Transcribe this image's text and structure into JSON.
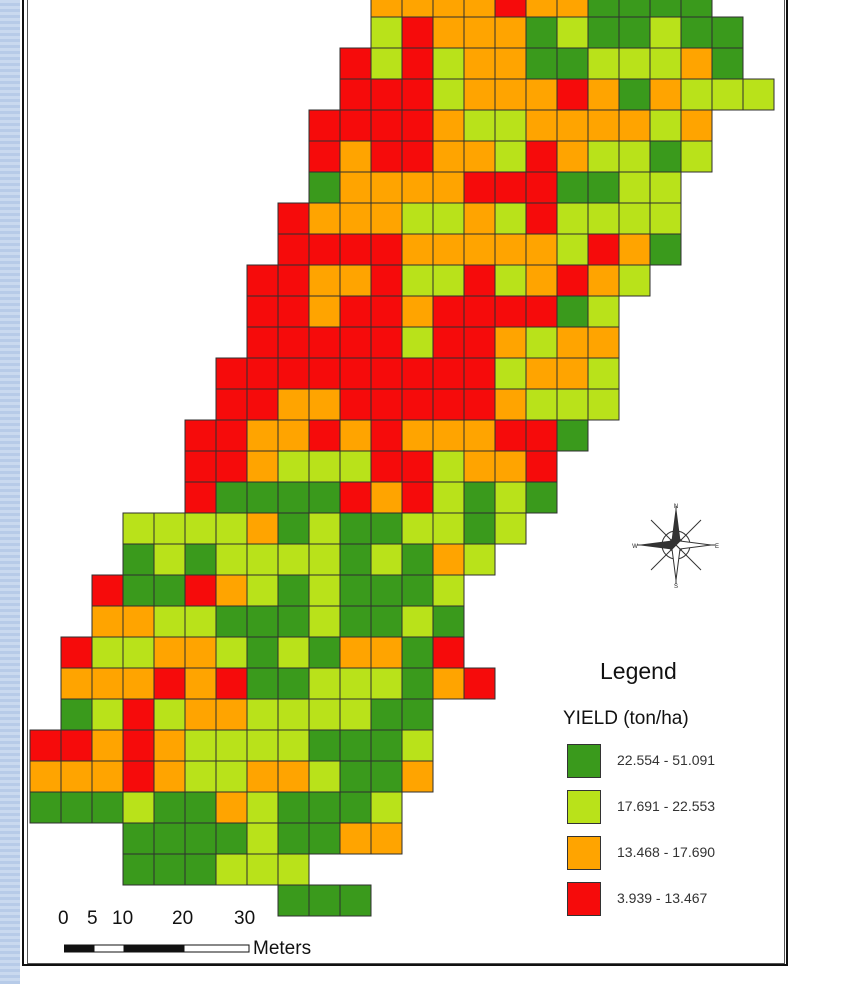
{
  "legend": {
    "title": "Legend",
    "field": "YIELD (ton/ha)",
    "classes": [
      {
        "label": "22.554 - 51.091",
        "color": "#3a9a1c",
        "code": "G"
      },
      {
        "label": "17.691 - 22.553",
        "color": "#b9e21a",
        "code": "L"
      },
      {
        "label": "13.468 - 17.690",
        "color": "#ffa400",
        "code": "O"
      },
      {
        "label": "3.939 - 13.467",
        "color": "#f60b0b",
        "code": "R"
      }
    ]
  },
  "scale_bar": {
    "tick_labels": [
      "0",
      "5",
      "10",
      "20",
      "30"
    ],
    "unit": "Meters"
  },
  "north_arrow": {
    "labels": [
      "N",
      "E",
      "S",
      "W"
    ]
  },
  "yield_grid": {
    "rows": [
      "...................OOOOROOGGGG..",
      "...................LROOOGLGGLGG.",
      "..................RLRLOOGGLLLOG.",
      "..................RRRLOOOROGOLLL",
      ".................RRRROLLOOOOLO..",
      ".................RORROOLROLLGL..",
      ".................GOOOORRRGGLL...",
      "................ROOOLLOLRLLLL...",
      "................RRRROOOOOLROG...",
      "...............RROORLLRLOROL....",
      "...............RRORRORRRRGL.....",
      "...............RRRRRLRROLOO.....",
      "..............RRRRRRRRRLOOL.....",
      "..............RROORRRRROLLL.....",
      ".............RROOROROOORRG......",
      ".............RROLLLRRLOOR.......",
      ".............RGGGGRORLGLG.......",
      "...........LLLLOGLGGLLGL........",
      "...........GLGLLLLGLGOL.........",
      "..........RGGROLGLGGGL..........",
      "..........OOLLGGGLGGLG..........",
      ".........RLLOOLGLGOOGR..........",
      ".........OOORORGGLLLGOR.........",
      ".........GLRLOOLLLLGG...........",
      "........RROROLLLLGGGL...........",
      "........OOOROLLOOLGGO...........",
      "........GGGLGGOLGGGL............",
      "...........GGGGLGGOO............",
      "...........GGGLLL...............",
      "................GGG............."
    ]
  }
}
